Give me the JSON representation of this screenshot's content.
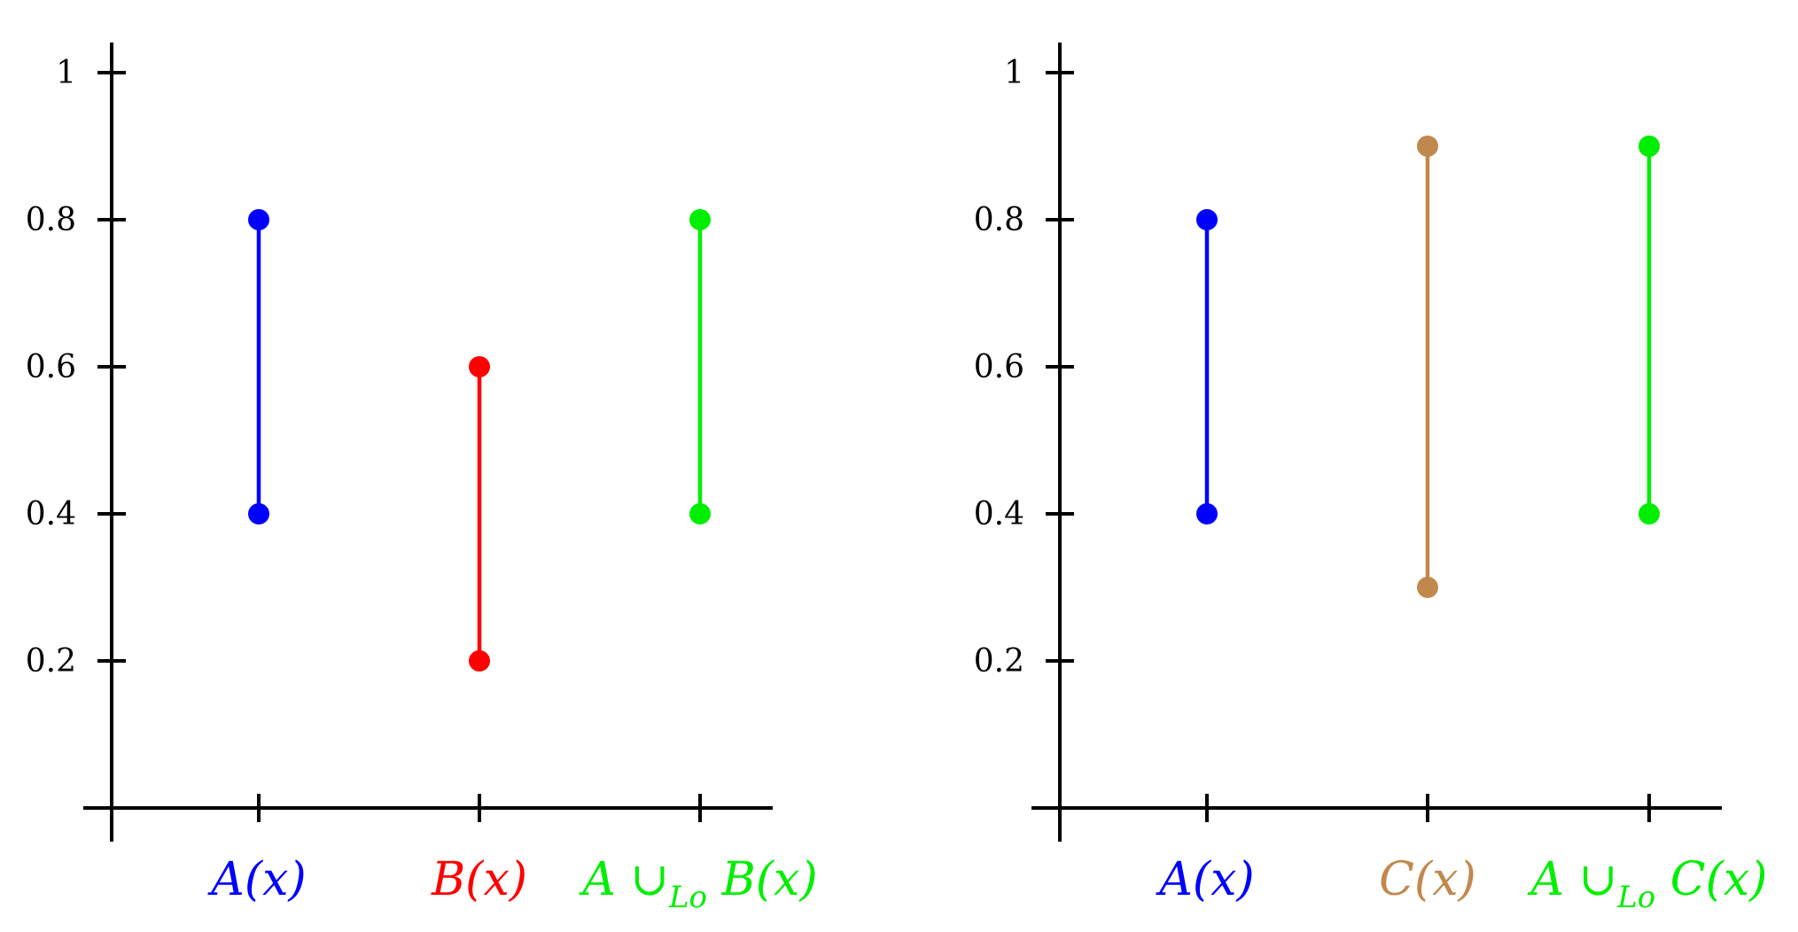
{
  "chart_data": [
    {
      "type": "interval",
      "ylim": [
        0,
        1.05
      ],
      "yticks": [
        0.2,
        0.4,
        0.6,
        0.8,
        1
      ],
      "ytick_labels": [
        "0.2",
        "0.4",
        "0.6",
        "0.8",
        "1"
      ],
      "categories": [
        {
          "label": "A(x)",
          "main": "A(x)",
          "sub": "",
          "tail": "",
          "lower": 0.4,
          "upper": 0.8,
          "color": "#0000ff"
        },
        {
          "label": "B(x)",
          "main": "B(x)",
          "sub": "",
          "tail": "",
          "lower": 0.2,
          "upper": 0.6,
          "color": "#ff0000"
        },
        {
          "label": "A ∪Lo B(x)",
          "main": "A ∪",
          "sub": "Lo",
          "tail": " B(x)",
          "lower": 0.4,
          "upper": 0.8,
          "color": "#00ee00"
        }
      ],
      "grid": false
    },
    {
      "type": "interval",
      "ylim": [
        0,
        1.05
      ],
      "yticks": [
        0.2,
        0.4,
        0.6,
        0.8,
        1
      ],
      "ytick_labels": [
        "0.2",
        "0.4",
        "0.6",
        "0.8",
        "1"
      ],
      "categories": [
        {
          "label": "A(x)",
          "main": "A(x)",
          "sub": "",
          "tail": "",
          "lower": 0.4,
          "upper": 0.8,
          "color": "#0000ff"
        },
        {
          "label": "C(x)",
          "main": "C(x)",
          "sub": "",
          "tail": "",
          "lower": 0.3,
          "upper": 0.9,
          "color": "#c1884d"
        },
        {
          "label": "A ∪Lo C(x)",
          "main": "A ∪",
          "sub": "Lo",
          "tail": " C(x)",
          "lower": 0.4,
          "upper": 0.9,
          "color": "#00ee00"
        }
      ],
      "grid": false
    }
  ]
}
